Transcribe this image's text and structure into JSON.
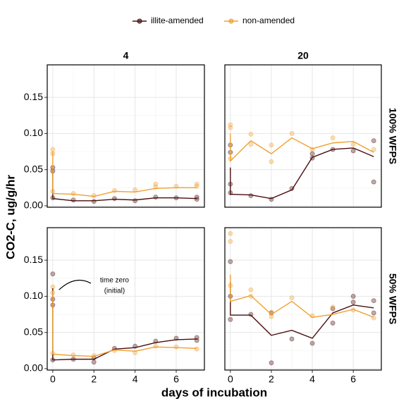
{
  "legend": [
    "illite-amended",
    "non-amended"
  ],
  "axes": {
    "xlabel": "days of incubation",
    "ylabel": "CO2-C, ug/g/hr",
    "xlim": [
      -0.27,
      7.37
    ],
    "xticks": [
      0,
      2,
      4,
      6
    ],
    "ylim": [
      -0.002,
      0.195
    ],
    "yticks": [
      {
        "value": 0,
        "label": "0.00"
      },
      {
        "value": 0.05,
        "label": "0.05"
      },
      {
        "value": 0.1,
        "label": "0.10"
      },
      {
        "value": 0.15,
        "label": "0.15"
      }
    ],
    "grid": true
  },
  "facets": {
    "columns": [
      "4",
      "20"
    ],
    "rows": [
      "100% WFPS",
      "50% WFPS"
    ]
  },
  "chart_data": [
    {
      "type": "line",
      "x": [
        0,
        0,
        1,
        2,
        3,
        4,
        5,
        6,
        7
      ],
      "series": [
        {
          "name": "illite-amended",
          "color": "#4a0e0e",
          "values": [
            0.05,
            0.01,
            0.007,
            0.007,
            0.009,
            0.008,
            0.011,
            0.011,
            0.01
          ],
          "replicates": {
            "x": [
              0,
              0,
              0,
              1,
              2,
              3,
              4,
              5,
              6,
              7,
              7
            ],
            "y": [
              0.053,
              0.048,
              0.011,
              0.008,
              0.006,
              0.01,
              0.007,
              0.012,
              0.011,
              0.012,
              0.009
            ]
          }
        },
        {
          "name": "non-amended",
          "color": "#f0a030",
          "values": [
            0.075,
            0.017,
            0.016,
            0.013,
            0.02,
            0.019,
            0.024,
            0.025,
            0.025
          ],
          "replicates": {
            "x": [
              0,
              0,
              0,
              1,
              2,
              3,
              4,
              5,
              5,
              6,
              7,
              7
            ],
            "y": [
              0.078,
              0.072,
              0.02,
              0.017,
              0.014,
              0.021,
              0.022,
              0.03,
              0.026,
              0.027,
              0.03,
              0.027
            ]
          }
        }
      ]
    },
    {
      "type": "line",
      "x": [
        0,
        0,
        1,
        2,
        3,
        4,
        5,
        6,
        7
      ],
      "series": [
        {
          "name": "illite-amended",
          "color": "#4a0e0e",
          "values": [
            0.053,
            0.016,
            0.015,
            0.01,
            0.022,
            0.067,
            0.078,
            0.08,
            0.068
          ],
          "replicates": {
            "x": [
              0,
              0,
              0,
              0,
              1,
              2,
              3,
              4,
              4,
              5,
              6,
              7,
              7
            ],
            "y": [
              0.084,
              0.074,
              0.03,
              0.018,
              0.014,
              0.009,
              0.024,
              0.072,
              0.066,
              0.078,
              0.076,
              0.09,
              0.033
            ]
          }
        },
        {
          "name": "non-amended",
          "color": "#f0a030",
          "values": [
            0.1,
            0.062,
            0.09,
            0.072,
            0.094,
            0.079,
            0.087,
            0.089,
            0.074
          ],
          "replicates": {
            "x": [
              0,
              0,
              0,
              1,
              1,
              2,
              2,
              3,
              4,
              5,
              6,
              7
            ],
            "y": [
              0.112,
              0.108,
              0.065,
              0.099,
              0.085,
              0.084,
              0.061,
              0.1,
              0.078,
              0.094,
              0.085,
              0.078
            ]
          }
        }
      ]
    },
    {
      "type": "line",
      "x": [
        0,
        0,
        1,
        2,
        3,
        4,
        5,
        6,
        7
      ],
      "annotation": [
        "time zero",
        "(initial)"
      ],
      "series": [
        {
          "name": "illite-amended",
          "color": "#4a0e0e",
          "values": [
            0.111,
            0.012,
            0.013,
            0.013,
            0.027,
            0.029,
            0.036,
            0.04,
            0.041
          ],
          "replicates": {
            "x": [
              0,
              0,
              0,
              0,
              1,
              2,
              2,
              3,
              4,
              5,
              6,
              7,
              7
            ],
            "y": [
              0.131,
              0.096,
              0.088,
              0.012,
              0.013,
              0.015,
              0.009,
              0.028,
              0.031,
              0.038,
              0.042,
              0.043,
              0.039
            ]
          }
        },
        {
          "name": "non-amended",
          "color": "#f0a030",
          "values": [
            0.108,
            0.02,
            0.018,
            0.017,
            0.026,
            0.024,
            0.03,
            0.029,
            0.028
          ],
          "replicates": {
            "x": [
              0,
              0,
              0,
              1,
              2,
              3,
              4,
              5,
              6,
              7
            ],
            "y": [
              0.113,
              0.105,
              0.021,
              0.019,
              0.018,
              0.025,
              0.022,
              0.031,
              0.03,
              0.027
            ]
          }
        }
      ]
    },
    {
      "type": "line",
      "x": [
        0,
        0,
        1,
        2,
        3,
        4,
        5,
        6,
        7
      ],
      "series": [
        {
          "name": "illite-amended",
          "color": "#4a0e0e",
          "values": [
            0.12,
            0.074,
            0.074,
            0.046,
            0.053,
            0.042,
            0.077,
            0.088,
            0.084
          ],
          "replicates": {
            "x": [
              0,
              0,
              0,
              1,
              2,
              2,
              3,
              4,
              5,
              5,
              6,
              6,
              7,
              7
            ],
            "y": [
              0.148,
              0.1,
              0.068,
              0.075,
              0.077,
              0.008,
              0.041,
              0.035,
              0.083,
              0.063,
              0.1,
              0.092,
              0.094,
              0.077
            ]
          }
        },
        {
          "name": "non-amended",
          "color": "#f0a030",
          "values": [
            0.13,
            0.093,
            0.101,
            0.075,
            0.093,
            0.071,
            0.075,
            0.082,
            0.071
          ],
          "replicates": {
            "x": [
              0,
              0,
              0,
              1,
              1,
              2,
              2,
              3,
              4,
              5,
              6,
              7
            ],
            "y": [
              0.187,
              0.176,
              0.115,
              0.109,
              0.1,
              0.078,
              0.072,
              0.098,
              0.073,
              0.085,
              0.081,
              0.07
            ]
          }
        }
      ]
    }
  ]
}
